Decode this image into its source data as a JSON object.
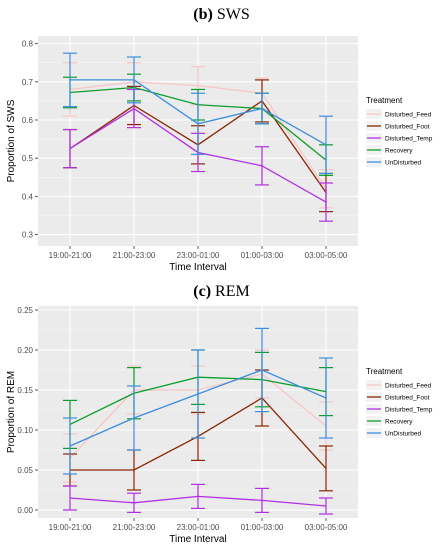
{
  "chart_data": [
    {
      "type": "line",
      "title_prefix": "(b)",
      "title": "SWS",
      "xlabel": "Time Interval",
      "ylabel": "Proportion of SWS",
      "ylim": [
        0.27,
        0.82
      ],
      "yticks": [
        0.3,
        0.4,
        0.5,
        0.6,
        0.7,
        0.8
      ],
      "ytick_labels": [
        "0.3",
        "0.4",
        "0.5",
        "0.6",
        "0.7",
        "0.8"
      ],
      "categories": [
        "19:00-21:00",
        "21:00-23:00",
        "23:00-01:00",
        "01:00-03:00",
        "03:00-05:00"
      ],
      "legend_title": "Treatment",
      "legend_position": "right",
      "grid": true,
      "series": [
        {
          "name": "Disturbed_Feed",
          "color": "#f7c6c6",
          "values": [
            0.68,
            0.7,
            0.69,
            0.67,
            0.42
          ],
          "errors": [
            0.07,
            0.05,
            0.05,
            0.04,
            0.05
          ]
        },
        {
          "name": "Disturbed_Foot",
          "color": "#8b2500",
          "values": [
            0.525,
            0.638,
            0.535,
            0.65,
            0.41
          ],
          "errors": [
            0.05,
            0.05,
            0.05,
            0.055,
            0.05
          ]
        },
        {
          "name": "Disturbed_Temp",
          "color": "#b22fe6",
          "values": [
            0.525,
            0.63,
            0.515,
            0.48,
            0.385
          ],
          "errors": [
            0.05,
            0.05,
            0.05,
            0.05,
            0.05
          ]
        },
        {
          "name": "Recovery",
          "color": "#0b9e2a",
          "values": [
            0.672,
            0.685,
            0.64,
            0.63,
            0.495
          ],
          "errors": [
            0.04,
            0.035,
            0.04,
            0.04,
            0.04
          ]
        },
        {
          "name": "UnDisturbed",
          "color": "#3b8ee0",
          "values": [
            0.705,
            0.705,
            0.59,
            0.63,
            0.535
          ],
          "errors": [
            0.07,
            0.06,
            0.08,
            0.04,
            0.075
          ]
        }
      ]
    },
    {
      "type": "line",
      "title_prefix": "(c)",
      "title": "REM",
      "xlabel": "Time Interval",
      "ylabel": "Proportion of REM",
      "ylim": [
        -0.01,
        0.255
      ],
      "yticks": [
        0.0,
        0.05,
        0.1,
        0.15,
        0.2,
        0.25
      ],
      "ytick_labels": [
        "0.00",
        "0.05",
        "0.10",
        "0.15",
        "0.20",
        "0.25"
      ],
      "categories": [
        "19:00-21:00",
        "21:00-23:00",
        "23:00-01:00",
        "01:00-03:00",
        "03:00-05:00"
      ],
      "legend_title": "Treatment",
      "legend_position": "right",
      "grid": true,
      "series": [
        {
          "name": "Disturbed_Feed",
          "color": "#f7c6c6",
          "values": [
            0.065,
            0.15,
            0.15,
            0.17,
            0.105
          ],
          "errors": [
            0.03,
            0.03,
            0.03,
            0.03,
            0.03
          ]
        },
        {
          "name": "Disturbed_Foot",
          "color": "#8b2500",
          "values": [
            0.05,
            0.05,
            0.092,
            0.14,
            0.052
          ],
          "errors": [
            0.02,
            0.025,
            0.03,
            0.035,
            0.028
          ]
        },
        {
          "name": "Disturbed_Temp",
          "color": "#b22fe6",
          "values": [
            0.015,
            0.009,
            0.017,
            0.012,
            0.005
          ],
          "errors": [
            0.015,
            0.012,
            0.015,
            0.015,
            0.01
          ]
        },
        {
          "name": "Recovery",
          "color": "#0b9e2a",
          "values": [
            0.107,
            0.146,
            0.166,
            0.163,
            0.148
          ],
          "errors": [
            0.03,
            0.032,
            0.034,
            0.034,
            0.03
          ]
        },
        {
          "name": "UnDisturbed",
          "color": "#3b8ee0",
          "values": [
            0.08,
            0.115,
            0.145,
            0.175,
            0.14
          ],
          "errors": [
            0.035,
            0.04,
            0.055,
            0.052,
            0.05
          ]
        }
      ]
    }
  ]
}
